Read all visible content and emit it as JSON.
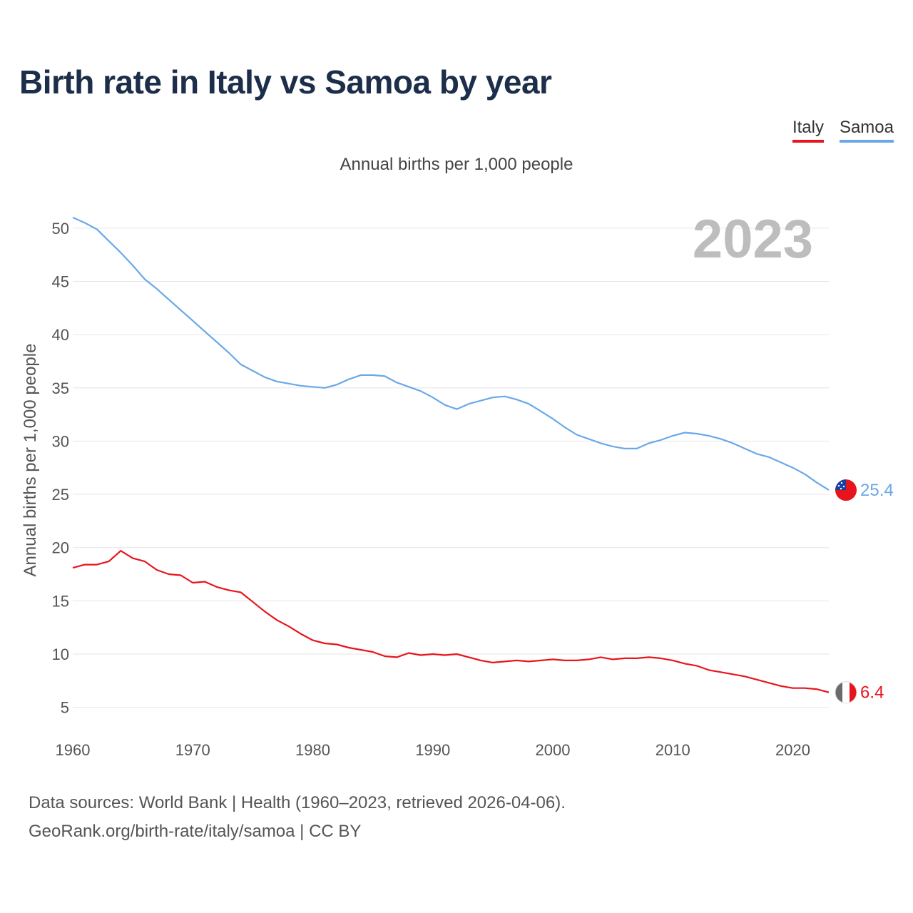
{
  "title": "Birth rate in Italy vs Samoa by year",
  "subtitle": "Annual births per 1,000 people",
  "legend": [
    {
      "name": "Italy",
      "color": "#e8141c"
    },
    {
      "name": "Samoa",
      "color": "#6aa8e8"
    }
  ],
  "source": {
    "line1": "Data sources: World Bank | Health (1960–2023, retrieved 2026-04-06).",
    "line2": "GeoRank.org/birth-rate/italy/samoa | CC BY"
  },
  "chart_data": {
    "type": "line",
    "title": "Birth rate in Italy vs Samoa by year",
    "ylabel": "Annual births per 1,000 people",
    "xlabel": "",
    "year_label": "2023",
    "xlim": [
      1960,
      2023
    ],
    "ylim": [
      3.5,
      52
    ],
    "x_ticks": [
      "1960",
      "1970",
      "1980",
      "1990",
      "2000",
      "2010",
      "2020"
    ],
    "y_ticks": [
      "5",
      "10",
      "15",
      "20",
      "25",
      "30",
      "35",
      "40",
      "45",
      "50"
    ],
    "x": [
      1960,
      1961,
      1962,
      1963,
      1964,
      1965,
      1966,
      1967,
      1968,
      1969,
      1970,
      1971,
      1972,
      1973,
      1974,
      1975,
      1976,
      1977,
      1978,
      1979,
      1980,
      1981,
      1982,
      1983,
      1984,
      1985,
      1986,
      1987,
      1988,
      1989,
      1990,
      1991,
      1992,
      1993,
      1994,
      1995,
      1996,
      1997,
      1998,
      1999,
      2000,
      2001,
      2002,
      2003,
      2004,
      2005,
      2006,
      2007,
      2008,
      2009,
      2010,
      2011,
      2012,
      2013,
      2014,
      2015,
      2016,
      2017,
      2018,
      2019,
      2020,
      2021,
      2022,
      2023
    ],
    "series": [
      {
        "name": "Samoa",
        "color": "#6aa8e8",
        "end_label": "25.4",
        "values": [
          51.0,
          50.5,
          49.9,
          48.8,
          47.7,
          46.5,
          45.2,
          44.3,
          43.3,
          42.3,
          41.3,
          40.3,
          39.3,
          38.3,
          37.2,
          36.6,
          36.0,
          35.6,
          35.4,
          35.2,
          35.1,
          35.0,
          35.3,
          35.8,
          36.2,
          36.2,
          36.1,
          35.5,
          35.1,
          34.7,
          34.1,
          33.4,
          33.0,
          33.5,
          33.8,
          34.1,
          34.2,
          33.9,
          33.5,
          32.8,
          32.1,
          31.3,
          30.6,
          30.2,
          29.8,
          29.5,
          29.3,
          29.3,
          29.8,
          30.1,
          30.5,
          30.8,
          30.7,
          30.5,
          30.2,
          29.8,
          29.3,
          28.8,
          28.5,
          28.0,
          27.5,
          26.9,
          26.1,
          25.4
        ]
      },
      {
        "name": "Italy",
        "color": "#e8141c",
        "end_label": "6.4",
        "values": [
          18.1,
          18.4,
          18.4,
          18.7,
          19.7,
          19.0,
          18.7,
          17.9,
          17.5,
          17.4,
          16.7,
          16.8,
          16.3,
          16.0,
          15.8,
          14.9,
          14.0,
          13.2,
          12.6,
          11.9,
          11.3,
          11.0,
          10.9,
          10.6,
          10.4,
          10.2,
          9.8,
          9.7,
          10.1,
          9.9,
          10.0,
          9.9,
          10.0,
          9.7,
          9.4,
          9.2,
          9.3,
          9.4,
          9.3,
          9.4,
          9.5,
          9.4,
          9.4,
          9.5,
          9.7,
          9.5,
          9.6,
          9.6,
          9.7,
          9.6,
          9.4,
          9.1,
          8.9,
          8.5,
          8.3,
          8.1,
          7.9,
          7.6,
          7.3,
          7.0,
          6.8,
          6.8,
          6.7,
          6.4
        ]
      }
    ]
  }
}
